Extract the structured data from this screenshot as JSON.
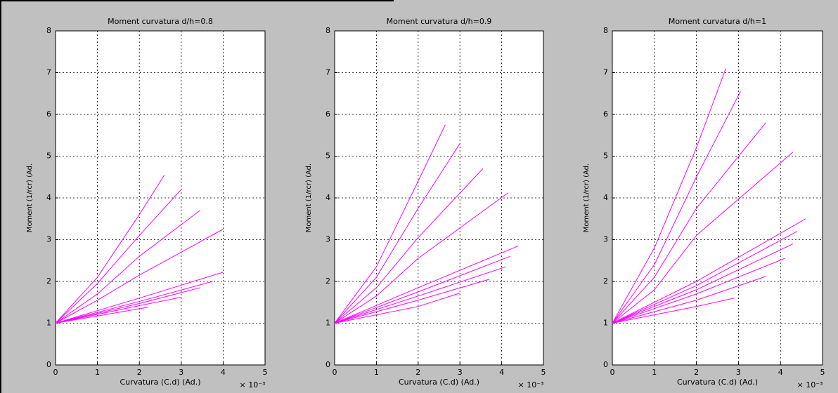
{
  "chart_data": [
    {
      "type": "line",
      "title": "Moment curvatura d/h=0.8",
      "xlabel": "Curvatura (C.d) (Ad.)",
      "ylabel": "Moment (1/rcr) (Ad.",
      "x_multiplier": "× 10⁻³",
      "xlim": [
        0,
        5
      ],
      "xticks": [
        0,
        1,
        2,
        3,
        4,
        5
      ],
      "ylim": [
        0,
        8
      ],
      "yticks": [
        0,
        1,
        2,
        3,
        4,
        5,
        6,
        7,
        8
      ],
      "grid": true,
      "series": [
        {
          "color": "#ff00ff",
          "x": [
            0,
            1,
            2,
            2.6
          ],
          "values": [
            1,
            2.1,
            3.6,
            4.55
          ]
        },
        {
          "color": "#ff00ff",
          "x": [
            0,
            1,
            2,
            3
          ],
          "values": [
            1,
            1.95,
            3.1,
            4.2
          ]
        },
        {
          "color": "#ff00ff",
          "x": [
            0,
            1,
            2,
            3.45
          ],
          "values": [
            1,
            1.7,
            2.6,
            3.7
          ]
        },
        {
          "color": "#ff00ff",
          "x": [
            0,
            1,
            2,
            4
          ],
          "values": [
            1,
            1.55,
            2.15,
            3.25
          ]
        },
        {
          "color": "#ff00ff",
          "x": [
            0,
            2,
            4
          ],
          "values": [
            1,
            1.6,
            2.22
          ]
        },
        {
          "color": "#ff00ff",
          "x": [
            0,
            2,
            3.75
          ],
          "values": [
            1,
            1.52,
            2.0
          ]
        },
        {
          "color": "#ff00ff",
          "x": [
            0,
            2,
            3.45
          ],
          "values": [
            1,
            1.47,
            1.85
          ]
        },
        {
          "color": "#ff00ff",
          "x": [
            0,
            2,
            3
          ],
          "values": [
            1,
            1.42,
            1.62
          ]
        },
        {
          "color": "#ff00ff",
          "x": [
            0,
            2.2
          ],
          "values": [
            1,
            1.38
          ]
        }
      ]
    },
    {
      "type": "line",
      "title": "Moment curvatura d/h=0.9",
      "xlabel": "Curvatura (C.d) (Ad.)",
      "ylabel": "Moment (1/rcr) (Ad.",
      "x_multiplier": "× 10⁻³",
      "xlim": [
        0,
        5
      ],
      "xticks": [
        0,
        1,
        2,
        3,
        4,
        5
      ],
      "ylim": [
        0,
        8
      ],
      "yticks": [
        0,
        1,
        2,
        3,
        4,
        5,
        6,
        7,
        8
      ],
      "grid": true,
      "series": [
        {
          "color": "#ff00ff",
          "x": [
            0,
            1,
            2,
            2.65
          ],
          "values": [
            1,
            2.35,
            4.4,
            5.75
          ]
        },
        {
          "color": "#ff00ff",
          "x": [
            0,
            1,
            2,
            3
          ],
          "values": [
            1,
            2.1,
            3.75,
            5.3
          ]
        },
        {
          "color": "#ff00ff",
          "x": [
            0,
            1,
            2,
            3.55
          ],
          "values": [
            1,
            1.85,
            3.05,
            4.7
          ]
        },
        {
          "color": "#ff00ff",
          "x": [
            0,
            1,
            2,
            4.15
          ],
          "values": [
            1,
            1.65,
            2.55,
            4.12
          ]
        },
        {
          "color": "#ff00ff",
          "x": [
            0,
            2,
            4.4
          ],
          "values": [
            1,
            1.85,
            2.85
          ]
        },
        {
          "color": "#ff00ff",
          "x": [
            0,
            2,
            4.2
          ],
          "values": [
            1,
            1.75,
            2.6
          ]
        },
        {
          "color": "#ff00ff",
          "x": [
            0,
            2,
            4.1
          ],
          "values": [
            1,
            1.65,
            2.35
          ]
        },
        {
          "color": "#ff00ff",
          "x": [
            0,
            2,
            3.7
          ],
          "values": [
            1,
            1.55,
            2.05
          ]
        },
        {
          "color": "#ff00ff",
          "x": [
            0,
            2,
            3
          ],
          "values": [
            1,
            1.4,
            1.72
          ]
        }
      ]
    },
    {
      "type": "line",
      "title": "Moment curvatura d/h=1",
      "xlabel": "Curvatura (C.d) (Ad.)",
      "ylabel": "Moment (1/rcr) (Ad.",
      "x_multiplier": "× 10⁻³",
      "xlim": [
        0,
        5
      ],
      "xticks": [
        0,
        1,
        2,
        3,
        4,
        5
      ],
      "ylim": [
        0,
        8
      ],
      "yticks": [
        0,
        1,
        2,
        3,
        4,
        5,
        6,
        7,
        8
      ],
      "grid": true,
      "series": [
        {
          "color": "#ff00ff",
          "x": [
            0,
            1,
            2,
            2.7
          ],
          "values": [
            1,
            2.8,
            5.2,
            7.1
          ]
        },
        {
          "color": "#ff00ff",
          "x": [
            0,
            1,
            2,
            3.05
          ],
          "values": [
            1,
            2.4,
            4.5,
            6.55
          ]
        },
        {
          "color": "#ff00ff",
          "x": [
            0,
            1,
            2,
            3.65
          ],
          "values": [
            1,
            2.1,
            3.75,
            5.8
          ]
        },
        {
          "color": "#ff00ff",
          "x": [
            0,
            1,
            2,
            4.3
          ],
          "values": [
            1,
            1.8,
            3.1,
            5.1
          ]
        },
        {
          "color": "#ff00ff",
          "x": [
            0,
            2,
            4.6
          ],
          "values": [
            1,
            2.0,
            3.5
          ]
        },
        {
          "color": "#ff00ff",
          "x": [
            0,
            2,
            4.4
          ],
          "values": [
            1,
            1.9,
            3.2
          ]
        },
        {
          "color": "#ff00ff",
          "x": [
            0,
            2,
            4.3
          ],
          "values": [
            1,
            1.8,
            2.9
          ]
        },
        {
          "color": "#ff00ff",
          "x": [
            0,
            2,
            4.1
          ],
          "values": [
            1,
            1.7,
            2.55
          ]
        },
        {
          "color": "#ff00ff",
          "x": [
            0,
            2,
            3.65
          ],
          "values": [
            1,
            1.55,
            2.12
          ]
        },
        {
          "color": "#ff00ff",
          "x": [
            0,
            2,
            2.9
          ],
          "values": [
            1,
            1.4,
            1.6
          ]
        }
      ]
    }
  ]
}
